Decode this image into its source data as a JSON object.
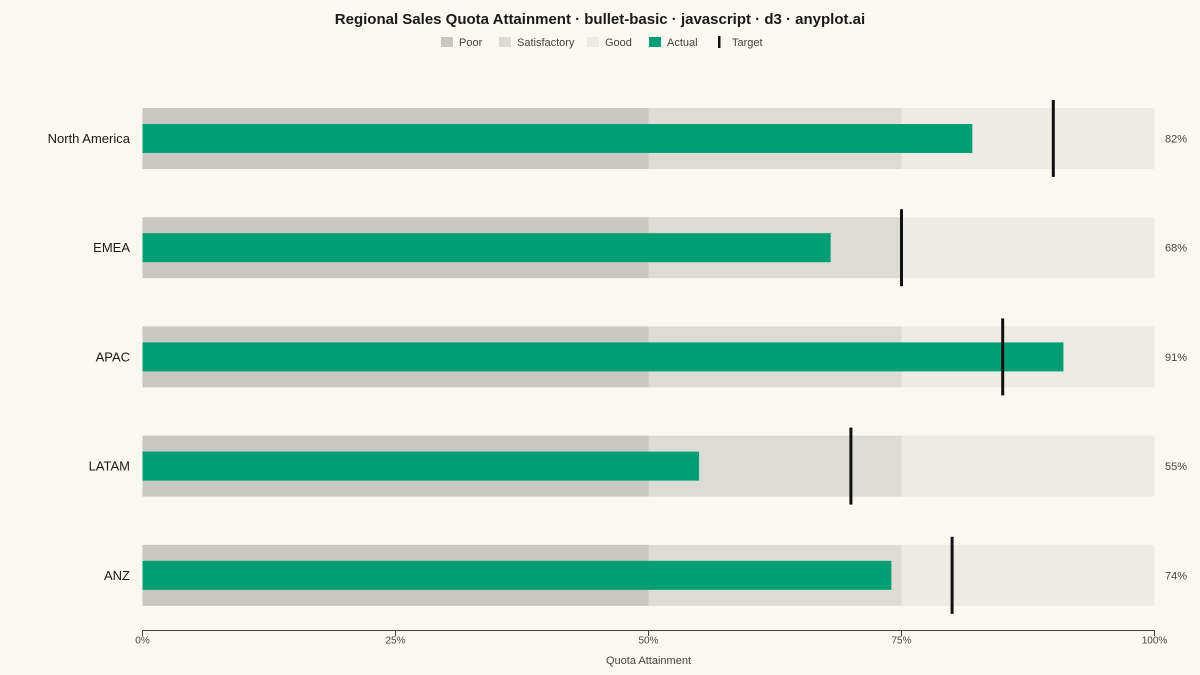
{
  "colors": {
    "background": "#FAF8F1",
    "poor": "#C8C7C1",
    "satisfactory": "#DCDCD5",
    "good": "#EDEBE4",
    "actual": "#009E73",
    "target": "#111111"
  },
  "chart_data": {
    "type": "bullet",
    "title": "Regional Sales Quota Attainment · bullet-basic · javascript · d3 · anyplot.ai",
    "xlabel": "Quota Attainment",
    "ylabel": "",
    "xlim": [
      0,
      100
    ],
    "ticks": [
      0,
      25,
      50,
      75,
      100
    ],
    "tick_labels": [
      "0%",
      "25%",
      "50%",
      "75%",
      "100%"
    ],
    "legend": {
      "placement": "top-center",
      "items": [
        {
          "label": "Poor",
          "key": "poor",
          "shape": "swatch"
        },
        {
          "label": "Satisfactory",
          "key": "satisfactory",
          "shape": "swatch"
        },
        {
          "label": "Good",
          "key": "good",
          "shape": "swatch"
        },
        {
          "label": "Actual",
          "key": "actual",
          "shape": "swatch"
        },
        {
          "label": "Target",
          "key": "target",
          "shape": "line"
        }
      ]
    },
    "ranges": [
      {
        "name": "Poor",
        "from": 0,
        "to": 50
      },
      {
        "name": "Satisfactory",
        "from": 50,
        "to": 75
      },
      {
        "name": "Good",
        "from": 75,
        "to": 100
      }
    ],
    "categories": [
      "North America",
      "EMEA",
      "APAC",
      "LATAM",
      "ANZ"
    ],
    "actual": [
      82,
      68,
      91,
      55,
      74
    ],
    "target": [
      90,
      75,
      85,
      70,
      80
    ],
    "value_labels": [
      "82%",
      "68%",
      "91%",
      "55%",
      "74%"
    ]
  }
}
